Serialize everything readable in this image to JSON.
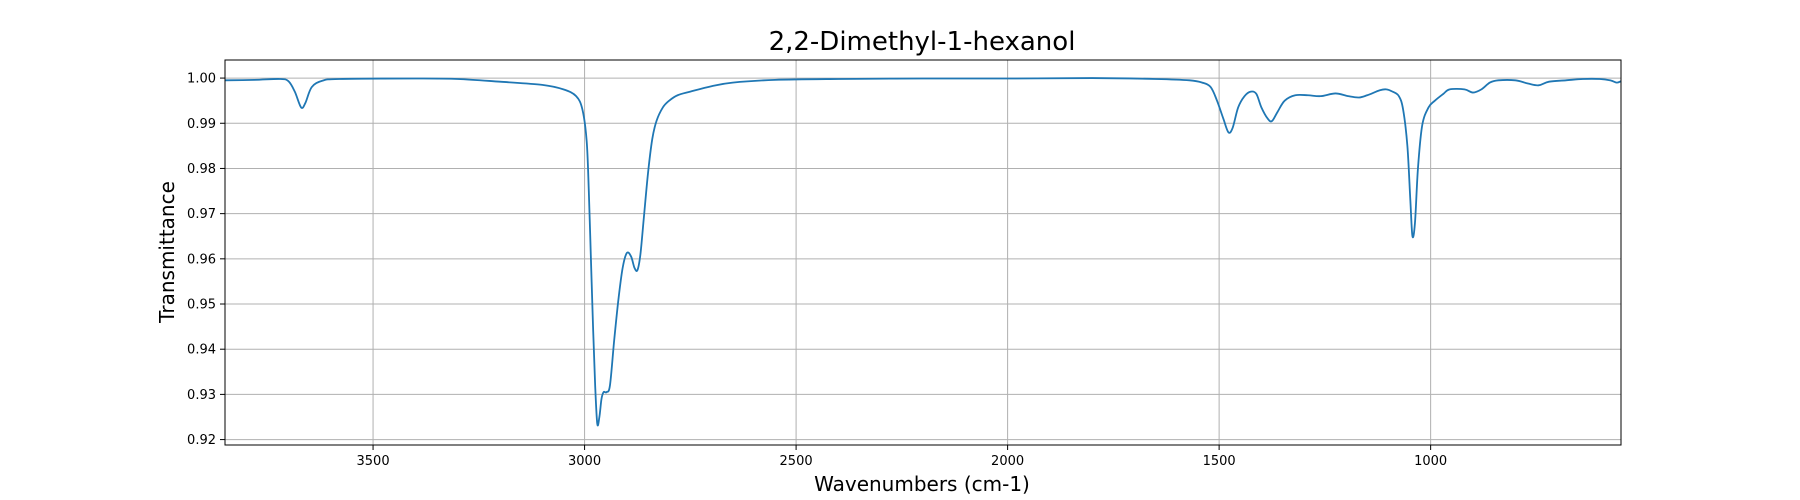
{
  "chart_data": {
    "type": "line",
    "title": "2,2-Dimethyl-1-hexanol",
    "xlabel": "Wavenumbers (cm-1)",
    "ylabel": "Transmittance",
    "xlim": [
      3850,
      550
    ],
    "ylim": [
      0.9188,
      1.004
    ],
    "x_inverted": true,
    "grid": true,
    "xticks": [
      3500,
      3000,
      2500,
      2000,
      1500,
      1000
    ],
    "xtick_labels": [
      "3500",
      "3000",
      "2500",
      "2000",
      "1500",
      "1000"
    ],
    "yticks": [
      0.92,
      0.93,
      0.94,
      0.95,
      0.96,
      0.97,
      0.98,
      0.99,
      1.0
    ],
    "ytick_labels": [
      "0.92",
      "0.93",
      "0.94",
      "0.95",
      "0.96",
      "0.97",
      "0.98",
      "0.99",
      "1.00"
    ],
    "series": [
      {
        "color": "#1f77b4",
        "points": [
          [
            3850,
            0.9995
          ],
          [
            3780,
            0.9996
          ],
          [
            3720,
            0.9998
          ],
          [
            3700,
            0.9993
          ],
          [
            3685,
            0.997
          ],
          [
            3670,
            0.9935
          ],
          [
            3660,
            0.9945
          ],
          [
            3645,
            0.998
          ],
          [
            3620,
            0.9994
          ],
          [
            3580,
            0.9998
          ],
          [
            3400,
            0.9999
          ],
          [
            3300,
            0.9998
          ],
          [
            3200,
            0.9992
          ],
          [
            3100,
            0.9985
          ],
          [
            3050,
            0.9975
          ],
          [
            3020,
            0.996
          ],
          [
            3005,
            0.993
          ],
          [
            2995,
            0.986
          ],
          [
            2990,
            0.975
          ],
          [
            2985,
            0.96
          ],
          [
            2980,
            0.945
          ],
          [
            2975,
            0.932
          ],
          [
            2970,
            0.9235
          ],
          [
            2965,
            0.925
          ],
          [
            2960,
            0.929
          ],
          [
            2955,
            0.9305
          ],
          [
            2948,
            0.9305
          ],
          [
            2940,
            0.932
          ],
          [
            2930,
            0.942
          ],
          [
            2920,
            0.951
          ],
          [
            2910,
            0.958
          ],
          [
            2900,
            0.9613
          ],
          [
            2890,
            0.9605
          ],
          [
            2882,
            0.958
          ],
          [
            2875,
            0.9575
          ],
          [
            2868,
            0.961
          ],
          [
            2860,
            0.969
          ],
          [
            2850,
            0.979
          ],
          [
            2840,
            0.9865
          ],
          [
            2830,
            0.9905
          ],
          [
            2815,
            0.9935
          ],
          [
            2800,
            0.995
          ],
          [
            2780,
            0.9962
          ],
          [
            2750,
            0.997
          ],
          [
            2700,
            0.9982
          ],
          [
            2650,
            0.999
          ],
          [
            2550,
            0.9996
          ],
          [
            2400,
            0.9998
          ],
          [
            2200,
            0.9999
          ],
          [
            2000,
            0.9999
          ],
          [
            1800,
            1.0
          ],
          [
            1650,
            0.9998
          ],
          [
            1570,
            0.9995
          ],
          [
            1540,
            0.999
          ],
          [
            1520,
            0.998
          ],
          [
            1505,
            0.995
          ],
          [
            1490,
            0.991
          ],
          [
            1478,
            0.988
          ],
          [
            1468,
            0.989
          ],
          [
            1455,
            0.9935
          ],
          [
            1440,
            0.996
          ],
          [
            1425,
            0.997
          ],
          [
            1412,
            0.9965
          ],
          [
            1400,
            0.9935
          ],
          [
            1385,
            0.991
          ],
          [
            1375,
            0.9905
          ],
          [
            1362,
            0.9925
          ],
          [
            1345,
            0.995
          ],
          [
            1320,
            0.9962
          ],
          [
            1290,
            0.9962
          ],
          [
            1260,
            0.996
          ],
          [
            1225,
            0.9966
          ],
          [
            1195,
            0.996
          ],
          [
            1170,
            0.9957
          ],
          [
            1150,
            0.9962
          ],
          [
            1120,
            0.9973
          ],
          [
            1105,
            0.9975
          ],
          [
            1090,
            0.997
          ],
          [
            1075,
            0.996
          ],
          [
            1065,
            0.993
          ],
          [
            1055,
            0.985
          ],
          [
            1048,
            0.973
          ],
          [
            1043,
            0.965
          ],
          [
            1037,
            0.968
          ],
          [
            1030,
            0.98
          ],
          [
            1020,
            0.9895
          ],
          [
            1005,
            0.9935
          ],
          [
            990,
            0.995
          ],
          [
            970,
            0.9965
          ],
          [
            955,
            0.9975
          ],
          [
            920,
            0.9975
          ],
          [
            900,
            0.9968
          ],
          [
            880,
            0.9975
          ],
          [
            860,
            0.999
          ],
          [
            840,
            0.9995
          ],
          [
            800,
            0.9995
          ],
          [
            770,
            0.9988
          ],
          [
            745,
            0.9984
          ],
          [
            720,
            0.9992
          ],
          [
            680,
            0.9995
          ],
          [
            640,
            0.9998
          ],
          [
            600,
            0.9998
          ],
          [
            575,
            0.9995
          ],
          [
            560,
            0.999
          ],
          [
            550,
            0.9993
          ]
        ]
      }
    ]
  }
}
